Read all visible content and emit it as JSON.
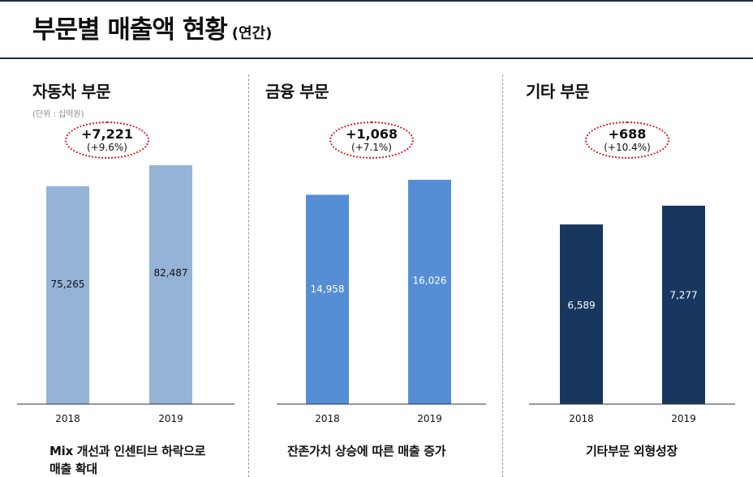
{
  "header": {
    "title": "부문별 매출액 현황",
    "subtitle": "(연간)"
  },
  "colors": {
    "rule": "#1c2a44",
    "highlight": "#d81f1f",
    "axis": "#333333"
  },
  "chart_data": [
    {
      "type": "bar",
      "title": "자동차 부문",
      "unit_note": "(단위 : 십억원)",
      "categories": [
        "2018",
        "2019"
      ],
      "values": [
        75265,
        82487
      ],
      "value_labels": [
        "75,265",
        "82,487"
      ],
      "bar_color": "#95b3d7",
      "label_color": "#111111",
      "change": {
        "abs": "+7,221",
        "pct": "(+9.6%)"
      },
      "note_lines": [
        "Mix 개선과 인센티브 하락으로",
        "매출 확대"
      ]
    },
    {
      "type": "bar",
      "title": "금융 부문",
      "categories": [
        "2018",
        "2019"
      ],
      "values": [
        14958,
        16026
      ],
      "value_labels": [
        "14,958",
        "16,026"
      ],
      "bar_color": "#558ed5",
      "label_color": "#ffffff",
      "change": {
        "abs": "+1,068",
        "pct": "(+7.1%)"
      },
      "note_lines": [
        "잔존가치 상승에 따른 매출 증가"
      ]
    },
    {
      "type": "bar",
      "title": "기타 부문",
      "categories": [
        "2018",
        "2019"
      ],
      "values": [
        6589,
        7277
      ],
      "value_labels": [
        "6,589",
        "7,277"
      ],
      "bar_color": "#17375e",
      "label_color": "#ffffff",
      "change": {
        "abs": "+688",
        "pct": "(+10.4%)"
      },
      "note_lines": [
        "기타부문 외형성장"
      ]
    }
  ]
}
